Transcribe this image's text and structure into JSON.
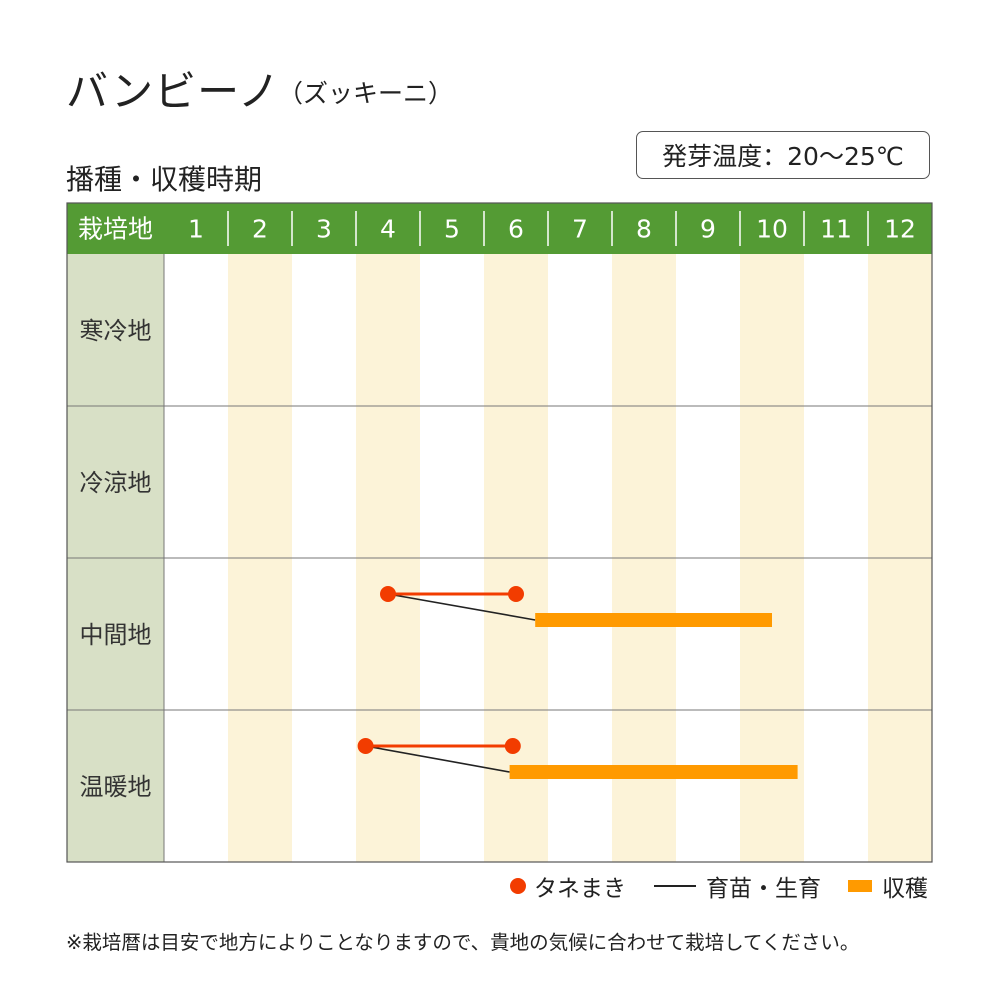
{
  "title": "バンビーノ",
  "subtitle": "（ズッキーニ）",
  "heading": "播種・収穫時期",
  "germination_temp": "発芽温度：20〜25℃",
  "colors": {
    "header_green": "#549b34",
    "row_label_bg": "#d8e0c6",
    "stripe": "#fcf3d8",
    "sowing": "#f23c00",
    "harvest": "#ff9a00",
    "seedling_line": "#222222"
  },
  "chart_data": {
    "type": "table",
    "header_label": "栽培地",
    "months": [
      "1",
      "2",
      "3",
      "4",
      "5",
      "6",
      "7",
      "8",
      "9",
      "10",
      "11",
      "12"
    ],
    "regions": [
      {
        "name": "寒冷地",
        "sowing": null,
        "harvest": null
      },
      {
        "name": "冷涼地",
        "sowing": null,
        "harvest": null
      },
      {
        "name": "中間地",
        "sowing": [
          4.5,
          6.5
        ],
        "harvest": [
          6.8,
          10.5
        ]
      },
      {
        "name": "温暖地",
        "sowing": [
          4.15,
          6.45
        ],
        "harvest": [
          6.4,
          10.9
        ]
      }
    ]
  },
  "legend": {
    "sowing": "タネまき",
    "seedling": "育苗・生育",
    "harvest": "収穫"
  },
  "footnote": "※栽培暦は目安で地方によりことなりますので、貴地の気候に合わせて栽培してください。"
}
